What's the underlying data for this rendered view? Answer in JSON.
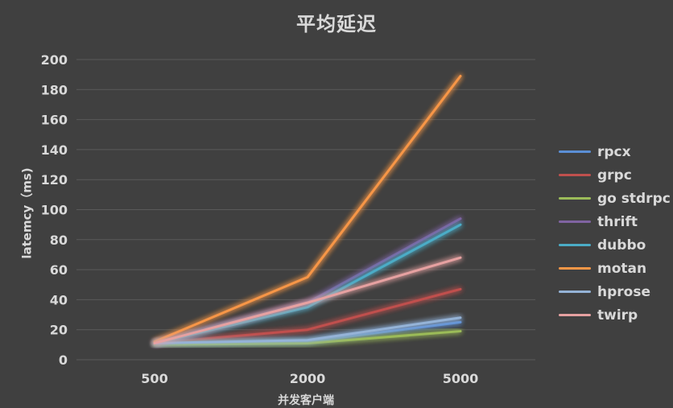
{
  "chart_data": {
    "type": "line",
    "title": "平均延迟",
    "xlabel": "并发客户端",
    "ylabel": "latemcy（ms)",
    "categories": [
      "500",
      "2000",
      "5000"
    ],
    "ylim": [
      0,
      200
    ],
    "yticks": [
      0,
      20,
      40,
      60,
      80,
      100,
      120,
      140,
      160,
      180,
      200
    ],
    "grid": true,
    "legend_position": "right",
    "series": [
      {
        "name": "rpcx",
        "color": "#5b8fd6",
        "values": [
          11,
          12,
          25
        ]
      },
      {
        "name": "grpc",
        "color": "#c0504d",
        "values": [
          11,
          20,
          47
        ]
      },
      {
        "name": "go stdrpc",
        "color": "#9bbb59",
        "values": [
          10,
          11,
          19
        ]
      },
      {
        "name": "thrift",
        "color": "#8064a2",
        "values": [
          11,
          38,
          94
        ]
      },
      {
        "name": "dubbo",
        "color": "#4bacc6",
        "values": [
          11,
          35,
          90
        ]
      },
      {
        "name": "motan",
        "color": "#f79646",
        "values": [
          12,
          55,
          189
        ]
      },
      {
        "name": "hprose",
        "color": "#95b3d7",
        "values": [
          11,
          13,
          28
        ]
      },
      {
        "name": "twirp",
        "color": "#e6a1a1",
        "values": [
          11,
          38,
          68
        ]
      }
    ]
  }
}
